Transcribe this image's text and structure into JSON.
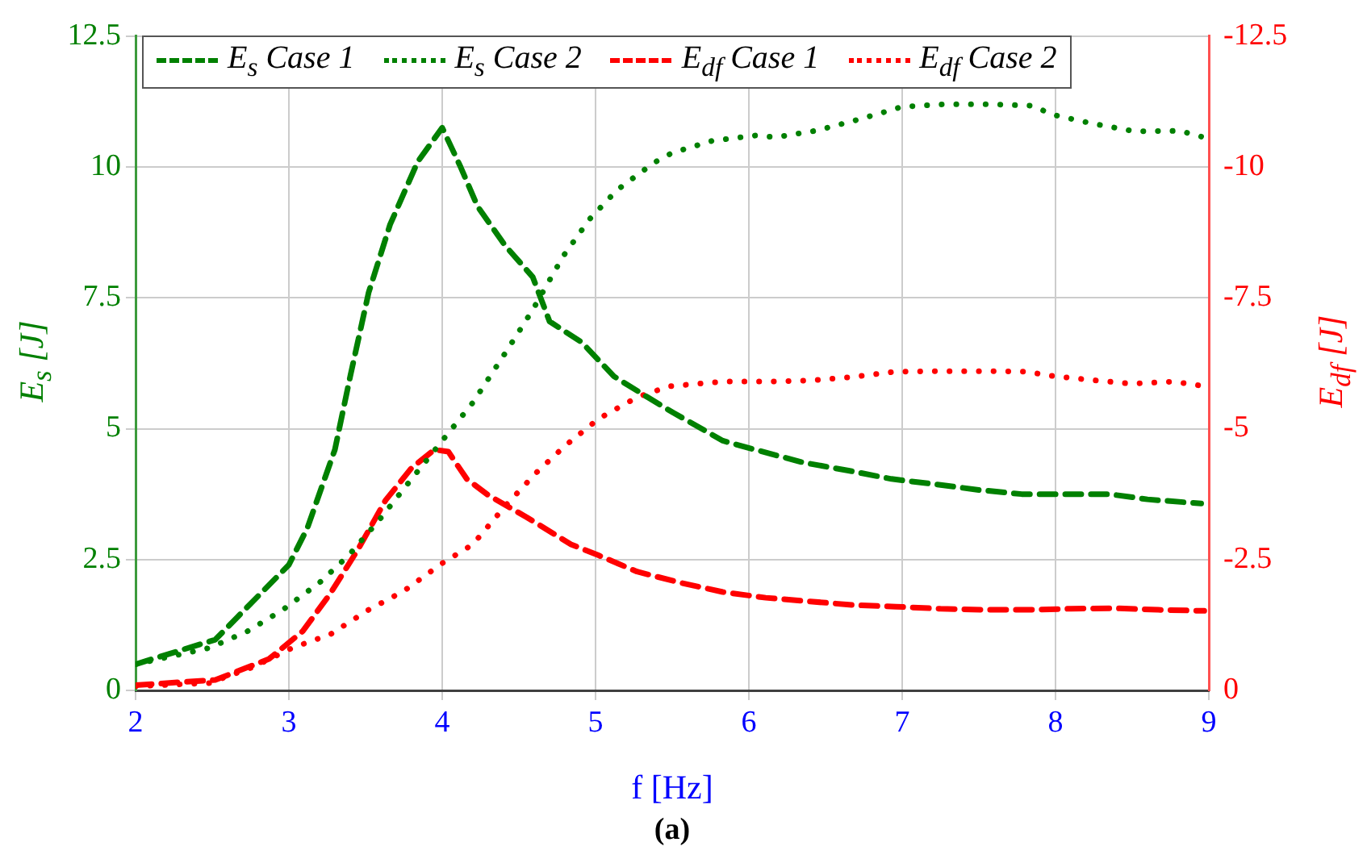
{
  "chart_data": {
    "type": "line",
    "xlabel": "f [Hz]",
    "ylabel": "E$_{s}$ [J]",
    "y2label": "E$_{df}$ [J]",
    "annotations": [
      "(a)"
    ],
    "xlim": [
      2,
      9
    ],
    "xticks": [
      2,
      3,
      4,
      5,
      6,
      7,
      8,
      9
    ],
    "ylim": [
      0,
      12.5
    ],
    "yticks": [
      0,
      2.5,
      5,
      7.5,
      10,
      12.5
    ],
    "y2lim": [
      0,
      -12.5
    ],
    "y2ticks": [
      0,
      -2.5,
      -5,
      -7.5,
      -10,
      -12.5
    ],
    "grid": true,
    "legend": "top left",
    "marker": "none",
    "series": [
      {
        "name": "E$_{s}$ Case 1",
        "color": "#008000",
        "line_style": "dashed",
        "x": [
          2,
          2.52,
          3,
          3.12,
          3.3,
          3.4,
          3.52,
          3.66,
          3.84,
          4,
          4.12,
          4.23,
          4.41,
          4.59,
          4.7,
          4.91,
          5.12,
          5.34,
          5.51,
          5.83,
          6.04,
          6.36,
          6.65,
          6.93,
          7.21,
          7.5,
          7.78,
          8.06,
          8.35,
          8.6,
          8.95
        ],
        "values": [
          0.5,
          0.97,
          2.4,
          3.1,
          4.6,
          6.0,
          7.6,
          8.9,
          10.1,
          10.75,
          10.0,
          9.25,
          8.5,
          7.9,
          7.05,
          6.65,
          6.0,
          5.6,
          5.3,
          4.77,
          4.6,
          4.35,
          4.2,
          4.04,
          3.94,
          3.83,
          3.75,
          3.75,
          3.75,
          3.65,
          3.57
        ]
      },
      {
        "name": "E$_{s}$ Case 2",
        "color": "#008000",
        "line_style": "dotted",
        "x": [
          2,
          2.48,
          2.73,
          2.96,
          3.2,
          3.39,
          3.59,
          3.8,
          4,
          4.2,
          4.41,
          4.59,
          4.79,
          4.96,
          5.14,
          5.38,
          5.5,
          5.76,
          6.04,
          6.18,
          6.45,
          6.73,
          7,
          7.28,
          7.57,
          7.85,
          7.98,
          8.24,
          8.52,
          8.81,
          8.95
        ],
        "values": [
          0.5,
          0.81,
          1.13,
          1.54,
          2.06,
          2.58,
          3.26,
          4.04,
          4.77,
          5.5,
          6.44,
          7.27,
          8.3,
          9.0,
          9.56,
          10.08,
          10.27,
          10.5,
          10.6,
          10.57,
          10.7,
          10.92,
          11.15,
          11.2,
          11.2,
          11.17,
          11.0,
          10.83,
          10.68,
          10.69,
          10.58
        ]
      },
      {
        "name": "E$_{df}$ Case 1",
        "color": "#ff0000",
        "line_style": "dashed",
        "axis": "y2",
        "x": [
          2,
          2.52,
          2.87,
          3.09,
          3.27,
          3.45,
          3.63,
          3.8,
          3.95,
          4.04,
          4.16,
          4.3,
          4.55,
          4.84,
          5.02,
          5.27,
          5.55,
          5.83,
          6.11,
          6.4,
          6.68,
          6.96,
          7.25,
          7.53,
          7.82,
          8.1,
          8.38,
          8.67,
          8.97
        ],
        "values": [
          -0.1,
          -0.2,
          -0.6,
          -1.13,
          -1.85,
          -2.69,
          -3.63,
          -4.25,
          -4.6,
          -4.56,
          -4.04,
          -3.73,
          -3.31,
          -2.79,
          -2.58,
          -2.27,
          -2.06,
          -1.88,
          -1.77,
          -1.7,
          -1.63,
          -1.6,
          -1.56,
          -1.54,
          -1.54,
          -1.56,
          -1.57,
          -1.54,
          -1.52
        ]
      },
      {
        "name": "E$_{df}$ Case 2",
        "color": "#ff0000",
        "line_style": "dotted",
        "axis": "y2",
        "x": [
          2,
          2.48,
          2.77,
          3.02,
          3.27,
          3.52,
          3.75,
          4,
          4.2,
          4.41,
          4.61,
          4.8,
          5.02,
          5.27,
          5.48,
          5.83,
          6.11,
          6.4,
          6.68,
          6.96,
          7.25,
          7.53,
          7.82,
          7.94,
          8.2,
          8.49,
          8.77,
          8.93
        ],
        "values": [
          -0.08,
          -0.14,
          -0.45,
          -0.81,
          -1.07,
          -1.54,
          -1.9,
          -2.43,
          -2.79,
          -3.52,
          -4.15,
          -4.67,
          -5.19,
          -5.6,
          -5.81,
          -5.9,
          -5.9,
          -5.92,
          -5.99,
          -6.09,
          -6.1,
          -6.1,
          -6.09,
          -6.02,
          -5.94,
          -5.86,
          -5.9,
          -5.83
        ]
      }
    ]
  }
}
